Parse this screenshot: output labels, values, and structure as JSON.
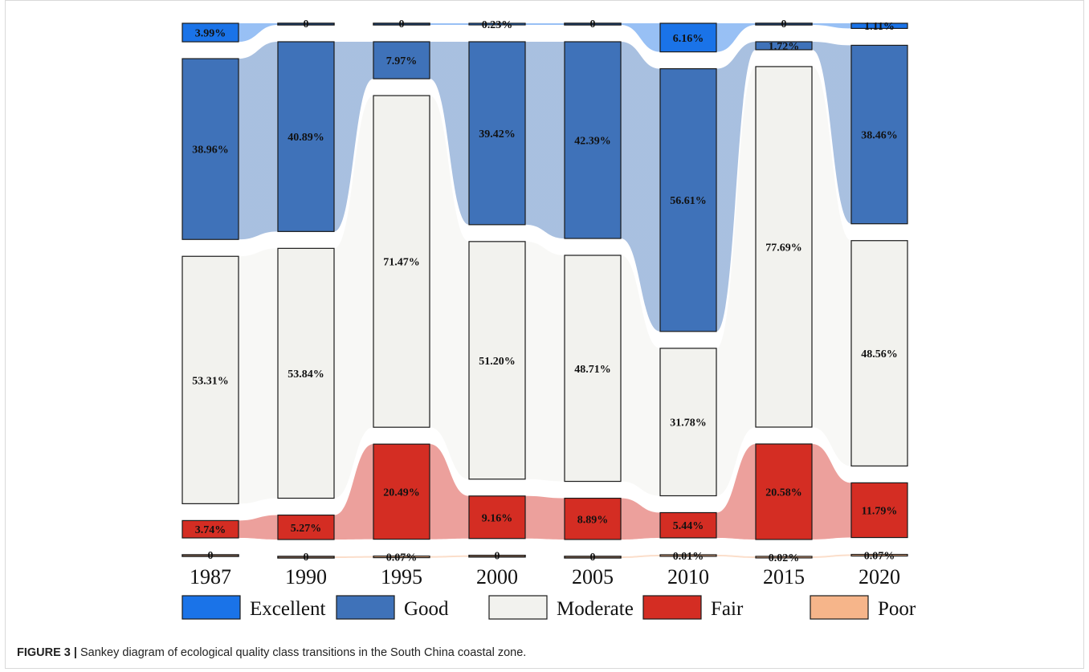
{
  "caption": {
    "label": "FIGURE 3 |",
    "text": " Sankey diagram of ecological quality class transitions in the South China coastal zone."
  },
  "chart_data": {
    "type": "sankey",
    "classes": [
      "Excellent",
      "Good",
      "Moderate",
      "Fair",
      "Poor"
    ],
    "colors": {
      "Excellent": "#1a73e8",
      "Good": "#3f72b9",
      "Moderate": "#f2f2ee",
      "Fair": "#d42d23",
      "Poor": "#f6b58a"
    },
    "years": [
      "1987",
      "1990",
      "1995",
      "2000",
      "2005",
      "2010",
      "2015",
      "2020"
    ],
    "values": {
      "1987": {
        "Excellent": 3.99,
        "Good": 38.96,
        "Moderate": 53.31,
        "Fair": 3.74,
        "Poor": 0
      },
      "1990": {
        "Excellent": 0,
        "Good": 40.89,
        "Moderate": 53.84,
        "Fair": 5.27,
        "Poor": 0
      },
      "1995": {
        "Excellent": 0,
        "Good": 7.97,
        "Moderate": 71.47,
        "Fair": 20.49,
        "Poor": 0.07
      },
      "2000": {
        "Excellent": 0.23,
        "Good": 39.42,
        "Moderate": 51.2,
        "Fair": 9.16,
        "Poor": 0
      },
      "2005": {
        "Excellent": 0,
        "Good": 42.39,
        "Moderate": 48.71,
        "Fair": 8.89,
        "Poor": 0
      },
      "2010": {
        "Excellent": 6.16,
        "Good": 56.61,
        "Moderate": 31.78,
        "Fair": 5.44,
        "Poor": 0.01
      },
      "2015": {
        "Excellent": 0,
        "Good": 1.72,
        "Moderate": 77.69,
        "Fair": 20.58,
        "Poor": 0.02
      },
      "2020": {
        "Excellent": 1.11,
        "Good": 38.46,
        "Moderate": 48.56,
        "Fair": 11.79,
        "Poor": 0.07
      }
    },
    "labels": {
      "1987": {
        "Excellent": "3.99%",
        "Good": "38.96%",
        "Moderate": "53.31%",
        "Fair": "3.74%",
        "Poor": "0"
      },
      "1990": {
        "Excellent": "0",
        "Good": "40.89%",
        "Moderate": "53.84%",
        "Fair": "5.27%",
        "Poor": "0"
      },
      "1995": {
        "Excellent": "0",
        "Good": "7.97%",
        "Moderate": "71.47%",
        "Fair": "20.49%",
        "Poor": "0.07%"
      },
      "2000": {
        "Excellent": "0.23%",
        "Good": "39.42%",
        "Moderate": "51.20%",
        "Fair": "9.16%",
        "Poor": "0"
      },
      "2005": {
        "Excellent": "0",
        "Good": "42.39%",
        "Moderate": "48.71%",
        "Fair": "8.89%",
        "Poor": "0"
      },
      "2010": {
        "Excellent": "6.16%",
        "Good": "56.61%",
        "Moderate": "31.78%",
        "Fair": "5.44%",
        "Poor": "0.01%"
      },
      "2015": {
        "Excellent": "0",
        "Good": "1.72%",
        "Moderate": "77.69%",
        "Fair": "20.58%",
        "Poor": "0.02%"
      },
      "2020": {
        "Excellent": "1.11%",
        "Good": "38.46%",
        "Moderate": "48.56%",
        "Fair": "11.79%",
        "Poor": "0.07%"
      }
    },
    "legend": [
      "Excellent",
      "Good",
      "Moderate",
      "Fair",
      "Poor"
    ],
    "legend_position": "bottom"
  }
}
